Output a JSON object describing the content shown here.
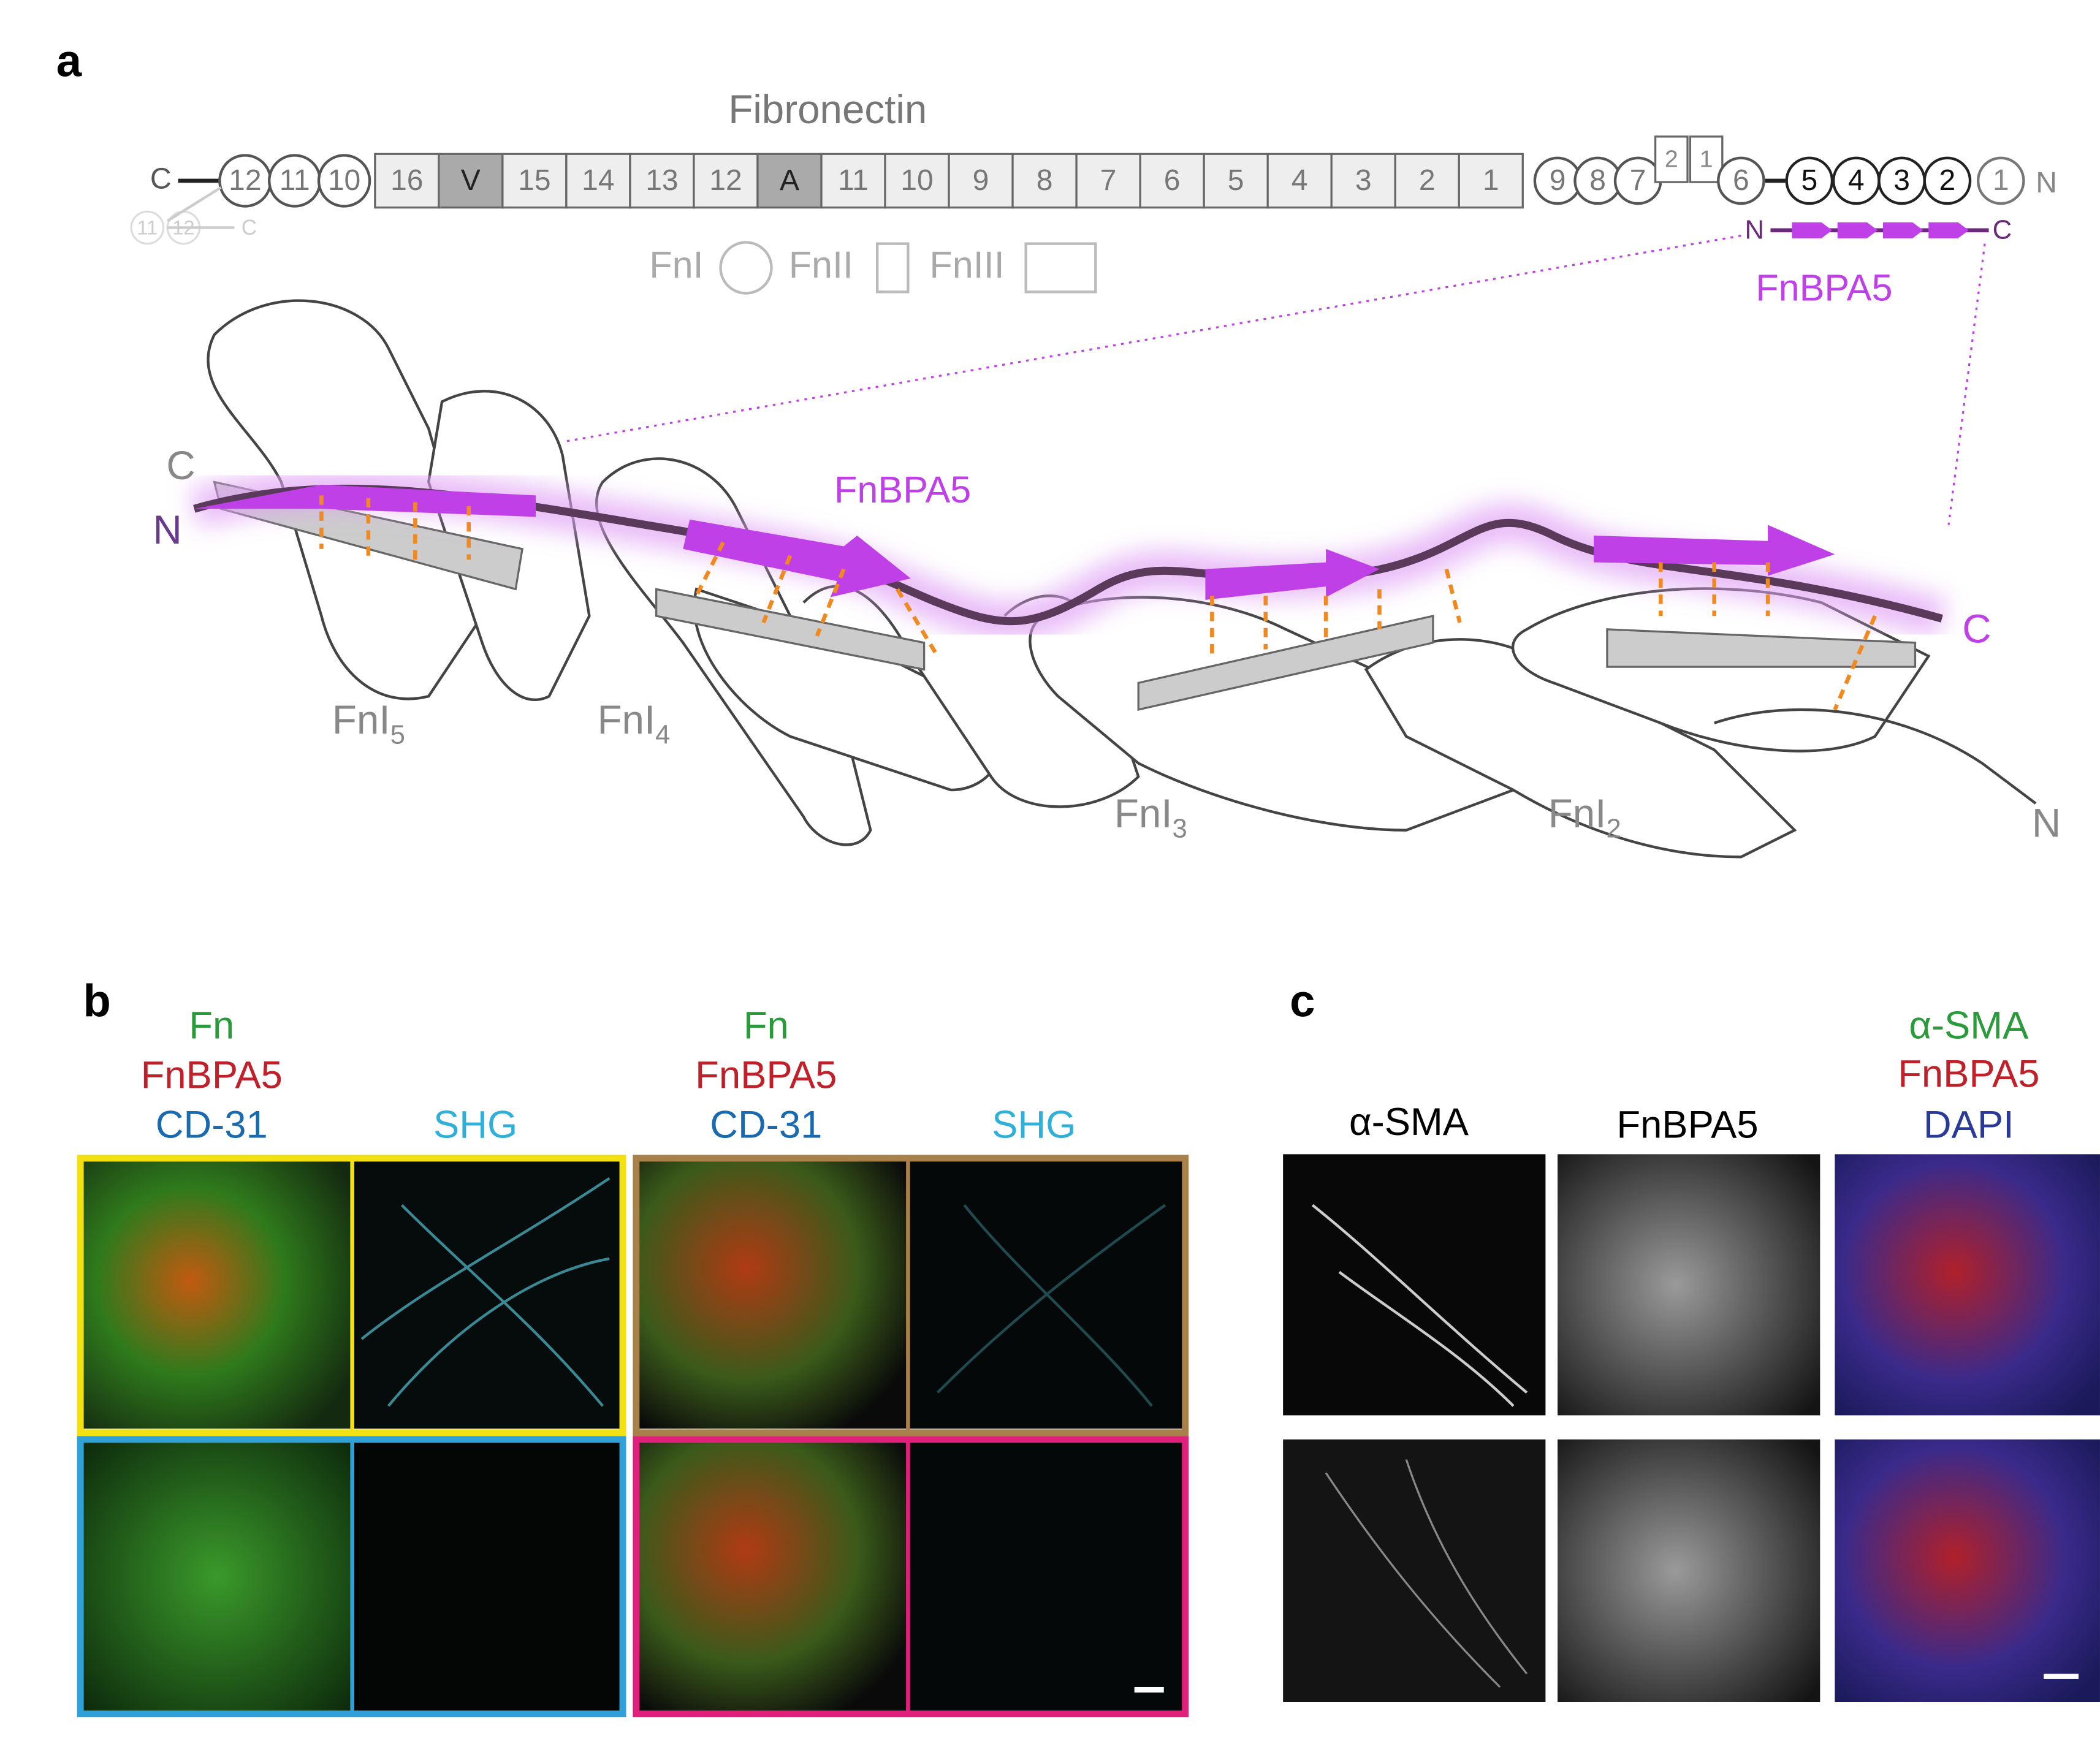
{
  "panel_a": {
    "label": "a",
    "title": "Fibronectin",
    "bar": {
      "c_end": "C",
      "n_end": "N",
      "left_circles": [
        "12",
        "11",
        "10"
      ],
      "boxes": [
        "16",
        "V",
        "15",
        "14",
        "13",
        "12",
        "A",
        "11",
        "10",
        "9",
        "8",
        "7",
        "6",
        "5",
        "4",
        "3",
        "2",
        "1"
      ],
      "mid_circles": [
        "9",
        "8",
        "7"
      ],
      "small_boxes": [
        "2",
        "1"
      ],
      "circle_6": "6",
      "right_circles": [
        "5",
        "4",
        "3",
        "2",
        "1"
      ],
      "faded_circles": [
        "11",
        "12"
      ],
      "faded_end": "C"
    },
    "legend": [
      "FnI",
      "FnII",
      "FnIII"
    ],
    "strip": {
      "n": "N",
      "c": "C",
      "name": "FnBPA5"
    },
    "structure": {
      "c_left": "C",
      "n_left": "N",
      "name": "FnBPA5",
      "c_right": "C",
      "n_right": "N",
      "domains": [
        {
          "text": "FnI",
          "sub": "5"
        },
        {
          "text": "FnI",
          "sub": "4"
        },
        {
          "text": "FnI",
          "sub": "3"
        },
        {
          "text": "FnI",
          "sub": "2"
        }
      ]
    }
  },
  "panel_b": {
    "label": "b",
    "headers_left": [
      "Fn",
      "FnBPA5",
      "CD-31",
      "SHG"
    ],
    "headers_right": [
      "Fn",
      "FnBPA5",
      "CD-31",
      "SHG"
    ]
  },
  "panel_c": {
    "label": "c",
    "headers": [
      "α-SMA",
      "FnBPA5"
    ],
    "merge": [
      "α-SMA",
      "FnBPA5",
      "DAPI"
    ]
  }
}
